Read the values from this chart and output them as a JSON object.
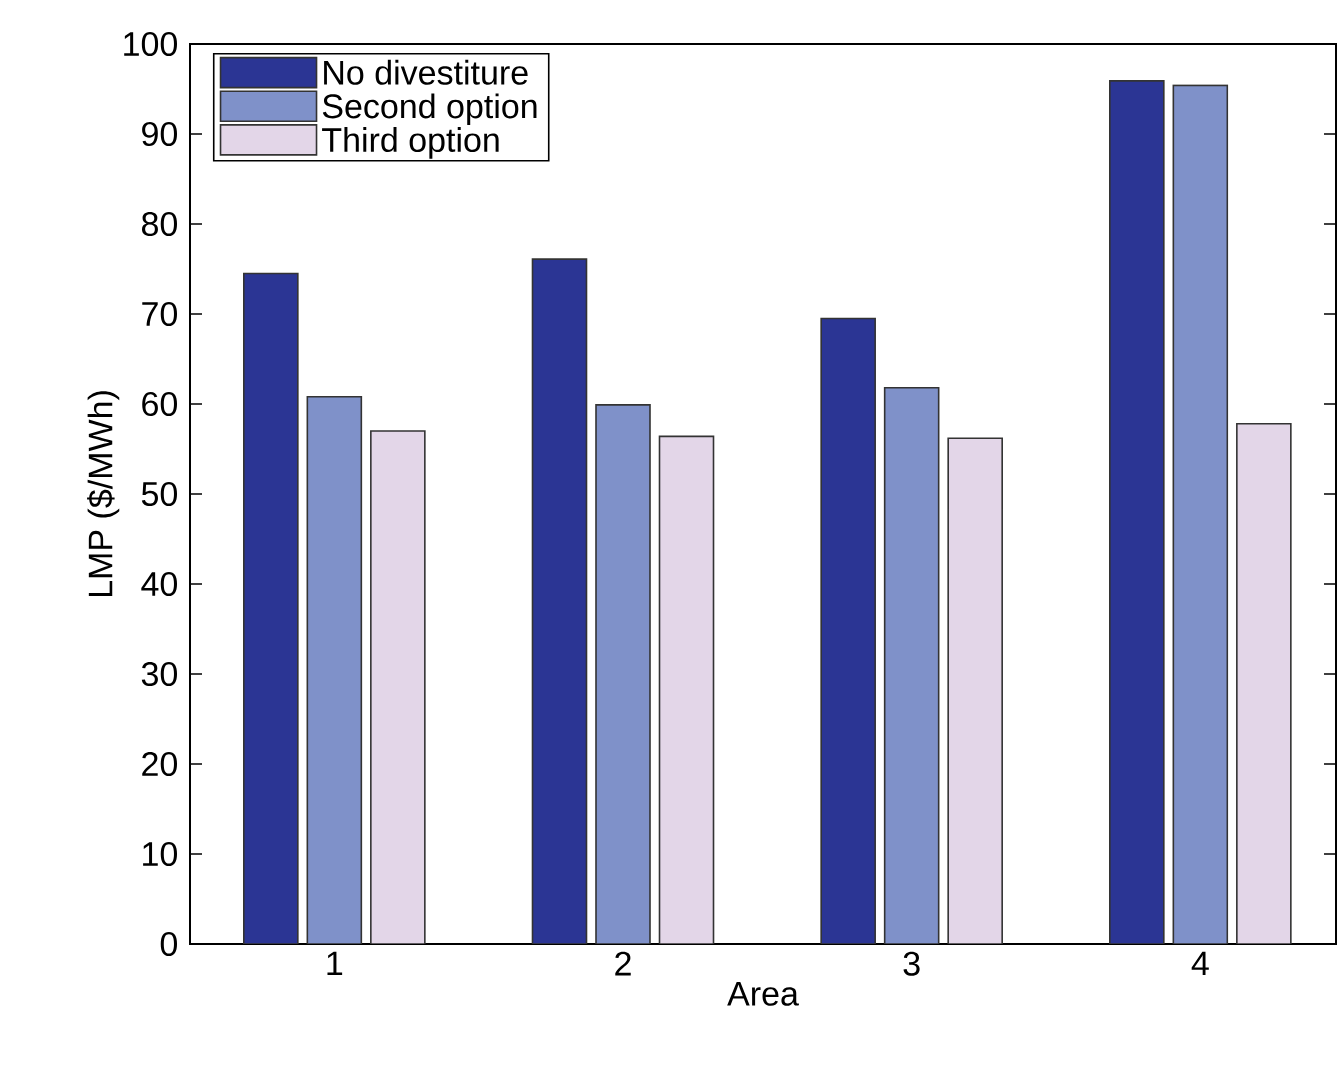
{
  "chart_data": {
    "type": "bar",
    "xlabel": "Area",
    "ylabel": "LMP ($/MWh)",
    "categories": [
      "1",
      "2",
      "3",
      "4"
    ],
    "series": [
      {
        "name": "No divestiture",
        "color": "#2b3594",
        "values": [
          74.5,
          76.1,
          69.5,
          95.9
        ]
      },
      {
        "name": "Second option",
        "color": "#7f91c9",
        "values": [
          60.8,
          59.9,
          61.8,
          95.4
        ]
      },
      {
        "name": "Third option",
        "color": "#e3d6e8",
        "values": [
          57.0,
          56.4,
          56.2,
          57.8
        ]
      }
    ],
    "ylim": [
      0,
      100
    ],
    "yticks": [
      0,
      10,
      20,
      30,
      40,
      50,
      60,
      70,
      80,
      90,
      100
    ],
    "grid": false,
    "legend": "top left"
  }
}
